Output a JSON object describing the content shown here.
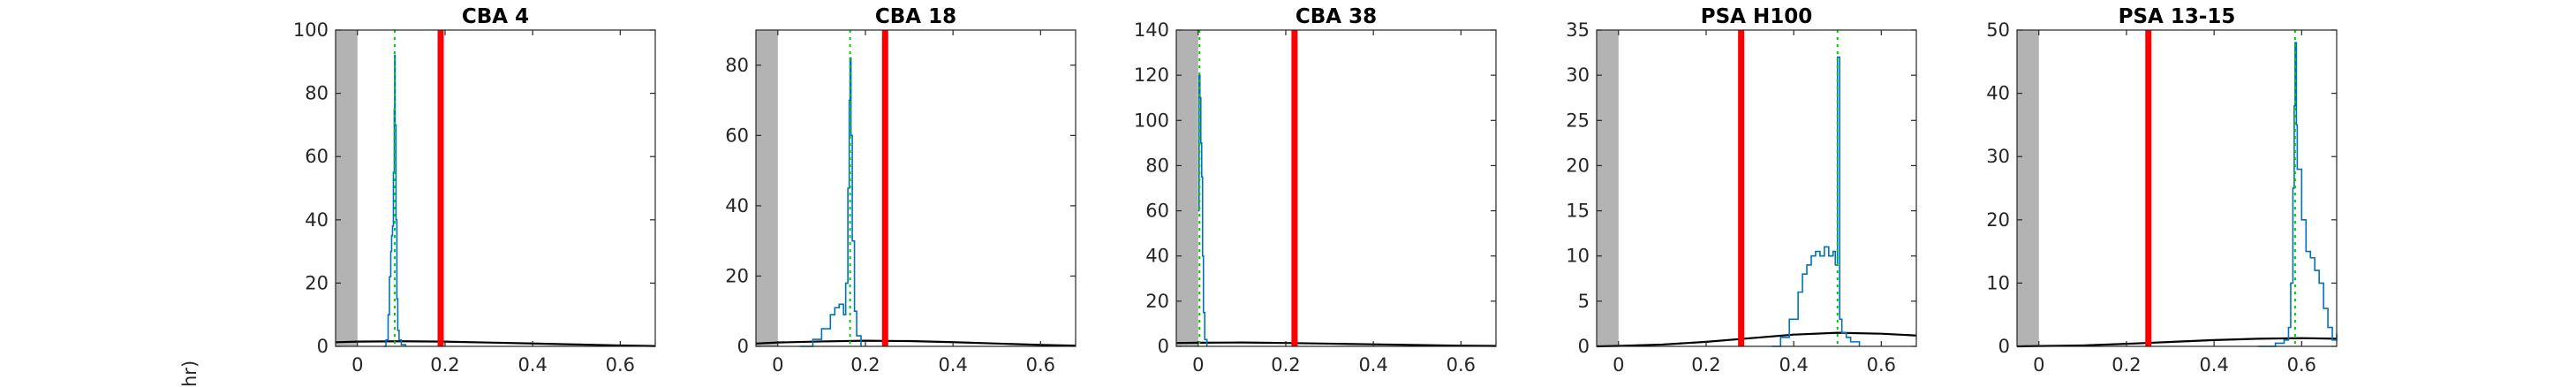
{
  "figure": {
    "ylabel_fragment": "hr)"
  },
  "colors": {
    "shade": "#b3b3b3",
    "histogram": "#0072bd",
    "threshold": "#ff0000",
    "peak_marker": "#00cc00",
    "fit_curve": "#000000",
    "axes": "#262626"
  },
  "chart_data": [
    {
      "type": "line",
      "title": "CBA 4",
      "xlim": [
        -0.05,
        0.68
      ],
      "ylim": [
        0,
        100
      ],
      "xticks": [
        0,
        0.2,
        0.4,
        0.6
      ],
      "xtick_labels": [
        "0",
        "0.2",
        "0.4",
        "0.6"
      ],
      "yticks": [
        0,
        20,
        40,
        60,
        80,
        100
      ],
      "ytick_labels": [
        "0",
        "20",
        "40",
        "60",
        "80",
        "100"
      ],
      "shaded_region": [
        -0.05,
        0.0
      ],
      "threshold_x": 0.19,
      "peak_x": 0.085,
      "series": [
        {
          "x": [
            0.06,
            0.065,
            0.07,
            0.073,
            0.076,
            0.078,
            0.08,
            0.082,
            0.084,
            0.085,
            0.086,
            0.088,
            0.09,
            0.092,
            0.095,
            0.1,
            0.11
          ],
          "y": [
            0,
            2,
            10,
            22,
            30,
            35,
            38,
            55,
            75,
            92,
            70,
            40,
            15,
            5,
            2,
            0.5,
            0
          ]
        },
        {
          "x": [
            -0.05,
            0.0,
            0.1,
            0.2,
            0.3,
            0.4,
            0.5,
            0.6,
            0.68
          ],
          "y": [
            1.3,
            1.5,
            1.6,
            1.5,
            1.2,
            0.9,
            0.6,
            0.3,
            0.1
          ]
        }
      ]
    },
    {
      "type": "line",
      "title": "CBA 18",
      "xlim": [
        -0.05,
        0.68
      ],
      "ylim": [
        0,
        90
      ],
      "xticks": [
        0,
        0.2,
        0.4,
        0.6
      ],
      "xtick_labels": [
        "0",
        "0.2",
        "0.4",
        "0.6"
      ],
      "yticks": [
        0,
        20,
        40,
        60,
        80
      ],
      "ytick_labels": [
        "0",
        "20",
        "40",
        "60",
        "80"
      ],
      "shaded_region": [
        -0.05,
        0.0
      ],
      "threshold_x": 0.245,
      "peak_x": 0.165,
      "series": [
        {
          "x": [
            0.05,
            0.08,
            0.1,
            0.12,
            0.13,
            0.14,
            0.15,
            0.155,
            0.16,
            0.163,
            0.165,
            0.167,
            0.17,
            0.175,
            0.18,
            0.19
          ],
          "y": [
            0,
            2,
            5,
            9,
            11,
            12,
            9,
            18,
            45,
            70,
            82,
            60,
            30,
            10,
            3,
            0
          ]
        },
        {
          "x": [
            -0.05,
            0.0,
            0.1,
            0.2,
            0.3,
            0.4,
            0.5,
            0.6,
            0.68
          ],
          "y": [
            0.8,
            1.1,
            1.4,
            1.6,
            1.5,
            1.2,
            0.8,
            0.4,
            0.2
          ]
        }
      ]
    },
    {
      "type": "line",
      "title": "CBA 38",
      "xlim": [
        -0.05,
        0.68
      ],
      "ylim": [
        0,
        140
      ],
      "xticks": [
        0,
        0.2,
        0.4,
        0.6
      ],
      "xtick_labels": [
        "0",
        "0.2",
        "0.4",
        "0.6"
      ],
      "yticks": [
        0,
        20,
        40,
        60,
        80,
        100,
        120,
        140
      ],
      "ytick_labels": [
        "0",
        "20",
        "40",
        "60",
        "80",
        "100",
        "120",
        "140"
      ],
      "shaded_region": [
        -0.05,
        0.0
      ],
      "threshold_x": 0.22,
      "peak_x": 0.003,
      "series": [
        {
          "x": [
            0.0,
            0.002,
            0.004,
            0.006,
            0.008,
            0.01,
            0.012,
            0.015,
            0.02
          ],
          "y": [
            60,
            120,
            110,
            90,
            75,
            40,
            15,
            3,
            0
          ]
        },
        {
          "x": [
            -0.05,
            0.0,
            0.1,
            0.2,
            0.3,
            0.4,
            0.5,
            0.6,
            0.68
          ],
          "y": [
            1.5,
            1.6,
            1.7,
            1.5,
            1.2,
            0.9,
            0.6,
            0.3,
            0.2
          ]
        }
      ]
    },
    {
      "type": "line",
      "title": "PSA H100",
      "xlim": [
        -0.05,
        0.68
      ],
      "ylim": [
        0,
        35
      ],
      "xticks": [
        0,
        0.2,
        0.4,
        0.6
      ],
      "xtick_labels": [
        "0",
        "0.2",
        "0.4",
        "0.6"
      ],
      "yticks": [
        0,
        5,
        10,
        15,
        20,
        25,
        30,
        35
      ],
      "ytick_labels": [
        "0",
        "5",
        "10",
        "15",
        "20",
        "25",
        "30",
        "35"
      ],
      "shaded_region": [
        -0.05,
        0.0
      ],
      "threshold_x": 0.28,
      "peak_x": 0.5,
      "series": [
        {
          "x": [
            0.35,
            0.37,
            0.39,
            0.41,
            0.42,
            0.43,
            0.44,
            0.45,
            0.46,
            0.47,
            0.48,
            0.49,
            0.495,
            0.5,
            0.505,
            0.51,
            0.52,
            0.53,
            0.55
          ],
          "y": [
            0,
            1,
            3,
            6,
            8,
            9,
            10,
            10.5,
            10,
            11,
            10,
            10.5,
            9,
            32,
            3,
            1.5,
            1,
            0.5,
            0
          ]
        },
        {
          "x": [
            -0.05,
            0.0,
            0.1,
            0.2,
            0.3,
            0.4,
            0.5,
            0.6,
            0.68
          ],
          "y": [
            0,
            0.05,
            0.2,
            0.5,
            0.9,
            1.3,
            1.5,
            1.4,
            1.2
          ]
        }
      ]
    },
    {
      "type": "line",
      "title": "PSA 13-15",
      "xlim": [
        -0.05,
        0.68
      ],
      "ylim": [
        0,
        50
      ],
      "xticks": [
        0,
        0.2,
        0.4,
        0.6
      ],
      "xtick_labels": [
        "0",
        "0.2",
        "0.4",
        "0.6"
      ],
      "yticks": [
        0,
        10,
        20,
        30,
        40,
        50
      ],
      "ytick_labels": [
        "0",
        "10",
        "20",
        "30",
        "40",
        "50"
      ],
      "shaded_region": [
        -0.05,
        0.0
      ],
      "threshold_x": 0.25,
      "peak_x": 0.585,
      "series": [
        {
          "x": [
            0.5,
            0.54,
            0.56,
            0.57,
            0.575,
            0.58,
            0.583,
            0.585,
            0.588,
            0.59,
            0.6,
            0.61,
            0.62,
            0.63,
            0.64,
            0.65,
            0.66,
            0.67,
            0.68
          ],
          "y": [
            0,
            0.5,
            1,
            3,
            10,
            25,
            38,
            48,
            35,
            28,
            20,
            15,
            14,
            12,
            10,
            6,
            3,
            1,
            2
          ]
        },
        {
          "x": [
            -0.05,
            0.0,
            0.1,
            0.2,
            0.3,
            0.4,
            0.5,
            0.6,
            0.68
          ],
          "y": [
            0,
            0.05,
            0.15,
            0.4,
            0.7,
            1.0,
            1.2,
            1.3,
            1.2
          ]
        }
      ]
    }
  ]
}
